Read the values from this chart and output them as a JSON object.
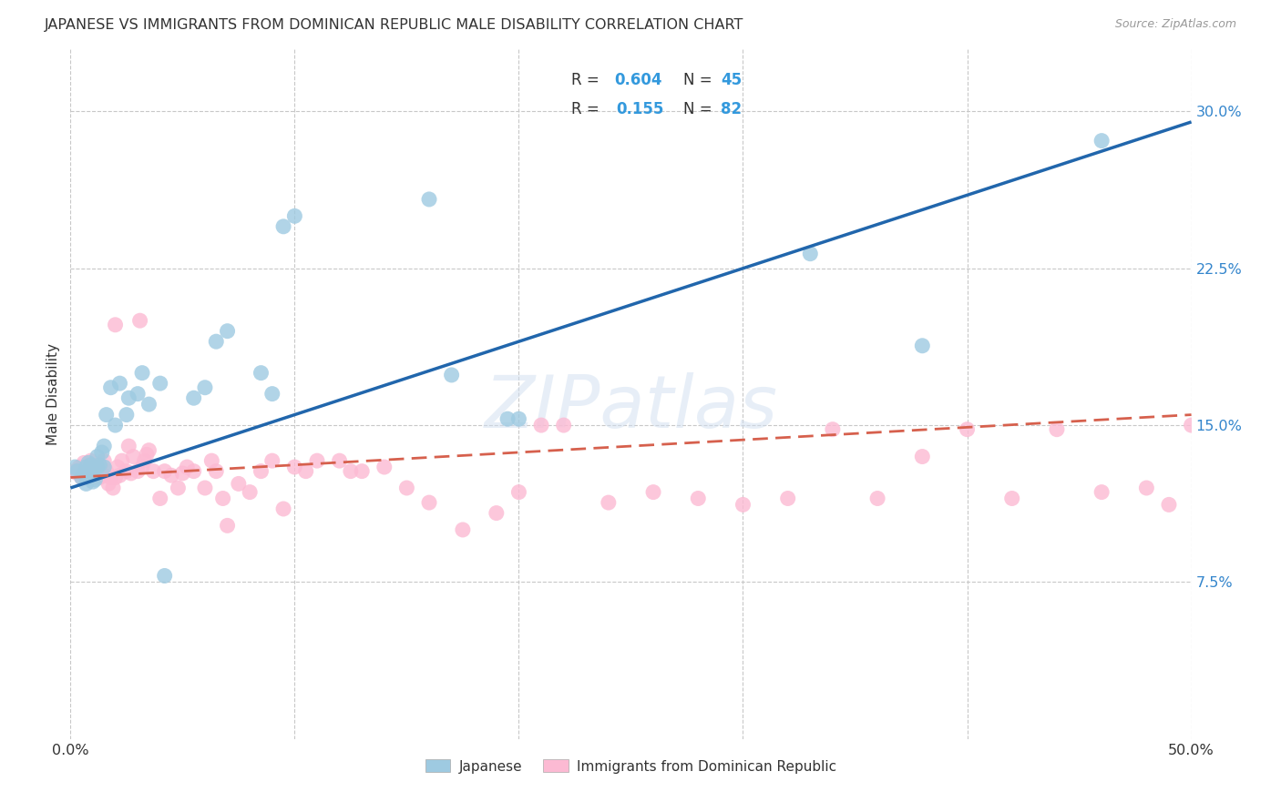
{
  "title": "JAPANESE VS IMMIGRANTS FROM DOMINICAN REPUBLIC MALE DISABILITY CORRELATION CHART",
  "source": "Source: ZipAtlas.com",
  "ylabel": "Male Disability",
  "xlim": [
    0.0,
    0.5
  ],
  "ylim": [
    0.0,
    0.33
  ],
  "yticks": [
    0.075,
    0.15,
    0.225,
    0.3
  ],
  "yticklabels": [
    "7.5%",
    "15.0%",
    "22.5%",
    "30.0%"
  ],
  "xtick_vals": [
    0.0,
    0.1,
    0.2,
    0.3,
    0.4,
    0.5
  ],
  "xticklabels": [
    "0.0%",
    "",
    "",
    "",
    "",
    "50.0%"
  ],
  "color_blue": "#9ecae1",
  "color_pink": "#fcbad3",
  "color_blue_line": "#2166ac",
  "color_pink_line": "#d6604d",
  "watermark": "ZIPatlas",
  "background_color": "#ffffff",
  "grid_color": "#c8c8c8",
  "japanese_x": [
    0.002,
    0.003,
    0.005,
    0.006,
    0.007,
    0.007,
    0.008,
    0.008,
    0.009,
    0.009,
    0.01,
    0.01,
    0.011,
    0.012,
    0.012,
    0.013,
    0.014,
    0.015,
    0.015,
    0.016,
    0.018,
    0.02,
    0.022,
    0.025,
    0.026,
    0.03,
    0.032,
    0.035,
    0.04,
    0.042,
    0.055,
    0.06,
    0.065,
    0.07,
    0.085,
    0.09,
    0.095,
    0.1,
    0.16,
    0.17,
    0.195,
    0.2,
    0.33,
    0.38,
    0.46
  ],
  "japanese_y": [
    0.13,
    0.128,
    0.125,
    0.127,
    0.122,
    0.13,
    0.125,
    0.132,
    0.126,
    0.131,
    0.123,
    0.129,
    0.124,
    0.13,
    0.135,
    0.131,
    0.137,
    0.13,
    0.14,
    0.155,
    0.168,
    0.15,
    0.17,
    0.155,
    0.163,
    0.165,
    0.175,
    0.16,
    0.17,
    0.078,
    0.163,
    0.168,
    0.19,
    0.195,
    0.175,
    0.165,
    0.245,
    0.25,
    0.258,
    0.174,
    0.153,
    0.153,
    0.232,
    0.188,
    0.286
  ],
  "dominican_x": [
    0.002,
    0.003,
    0.004,
    0.005,
    0.006,
    0.007,
    0.008,
    0.008,
    0.009,
    0.01,
    0.011,
    0.012,
    0.013,
    0.014,
    0.015,
    0.015,
    0.016,
    0.017,
    0.018,
    0.019,
    0.02,
    0.02,
    0.021,
    0.022,
    0.023,
    0.025,
    0.026,
    0.027,
    0.028,
    0.03,
    0.031,
    0.032,
    0.033,
    0.034,
    0.035,
    0.037,
    0.04,
    0.042,
    0.045,
    0.048,
    0.05,
    0.052,
    0.055,
    0.06,
    0.063,
    0.065,
    0.068,
    0.07,
    0.075,
    0.08,
    0.085,
    0.09,
    0.095,
    0.1,
    0.105,
    0.11,
    0.12,
    0.125,
    0.13,
    0.14,
    0.15,
    0.16,
    0.175,
    0.19,
    0.2,
    0.21,
    0.22,
    0.24,
    0.26,
    0.28,
    0.3,
    0.32,
    0.34,
    0.36,
    0.38,
    0.4,
    0.42,
    0.44,
    0.46,
    0.48,
    0.49,
    0.5
  ],
  "dominican_y": [
    0.128,
    0.127,
    0.13,
    0.125,
    0.132,
    0.128,
    0.13,
    0.127,
    0.133,
    0.125,
    0.13,
    0.128,
    0.125,
    0.127,
    0.126,
    0.133,
    0.128,
    0.122,
    0.125,
    0.12,
    0.125,
    0.198,
    0.13,
    0.126,
    0.133,
    0.128,
    0.14,
    0.127,
    0.135,
    0.128,
    0.2,
    0.13,
    0.133,
    0.136,
    0.138,
    0.128,
    0.115,
    0.128,
    0.126,
    0.12,
    0.127,
    0.13,
    0.128,
    0.12,
    0.133,
    0.128,
    0.115,
    0.102,
    0.122,
    0.118,
    0.128,
    0.133,
    0.11,
    0.13,
    0.128,
    0.133,
    0.133,
    0.128,
    0.128,
    0.13,
    0.12,
    0.113,
    0.1,
    0.108,
    0.118,
    0.15,
    0.15,
    0.113,
    0.118,
    0.115,
    0.112,
    0.115,
    0.148,
    0.115,
    0.135,
    0.148,
    0.115,
    0.148,
    0.118,
    0.12,
    0.112,
    0.15
  ]
}
